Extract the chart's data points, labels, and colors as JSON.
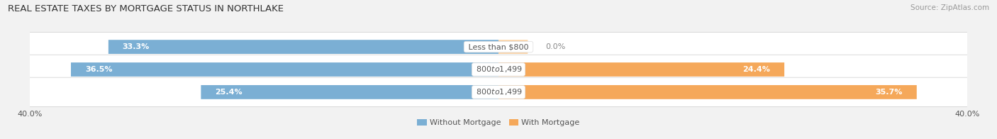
{
  "title": "REAL ESTATE TAXES BY MORTGAGE STATUS IN NORTHLAKE",
  "source": "Source: ZipAtlas.com",
  "categories": [
    "Less than $800",
    "$800 to $1,499",
    "$800 to $1,499"
  ],
  "without_mortgage": [
    33.3,
    36.5,
    25.4
  ],
  "with_mortgage": [
    0.0,
    24.4,
    35.7
  ],
  "color_without": "#7BAFD4",
  "color_with": "#F5A85A",
  "color_without_pale": "#B8D4E8",
  "color_with_pale": "#FAD4A8",
  "xlim": 40.0,
  "bar_height": 0.62,
  "background_color": "#f2f2f2",
  "bar_bg_color": "#ffffff",
  "title_fontsize": 9.5,
  "source_fontsize": 7.5,
  "label_fontsize": 8,
  "value_fontsize": 8,
  "tick_fontsize": 8,
  "legend_fontsize": 8
}
